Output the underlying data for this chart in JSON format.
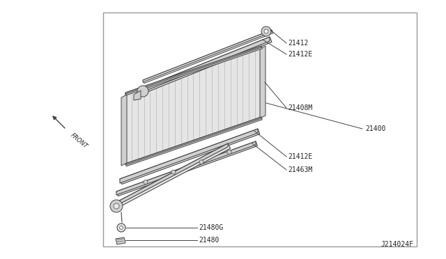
{
  "background_color": "#ffffff",
  "border_color": "#aaaaaa",
  "line_color": "#444444",
  "text_color": "#222222",
  "fill_light": "#e8e8e8",
  "fill_mid": "#d0d0d0",
  "fill_dark": "#b8b8b8",
  "fill_white": "#f5f5f5",
  "diagram_label": "J214024F",
  "label_fontsize": 7.0,
  "part_numbers": [
    "21412",
    "21412E",
    "21408M",
    "21400",
    "21412E",
    "21463M",
    "21480G",
    "21480"
  ],
  "front_text": "FRONT"
}
